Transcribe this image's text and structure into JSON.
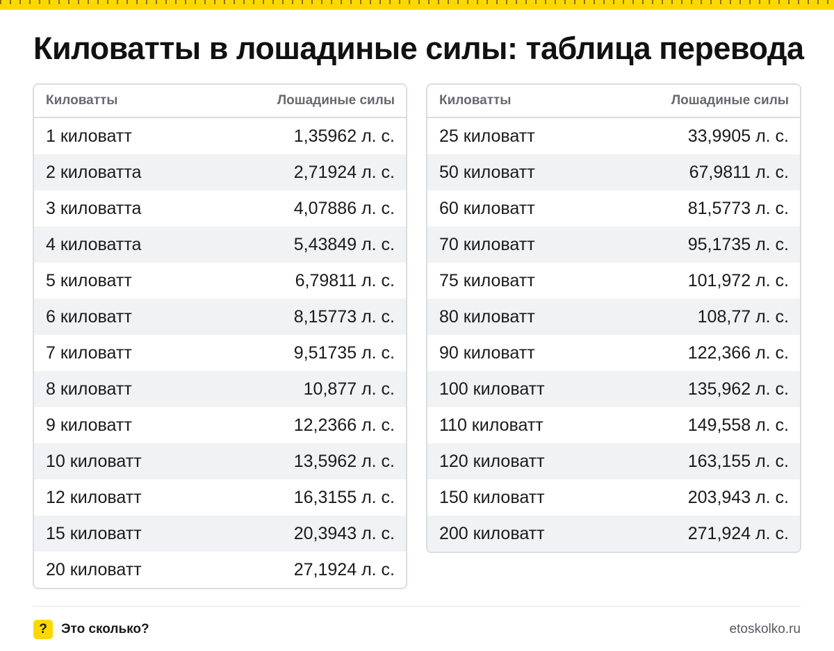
{
  "title": "Киловатты в лошадиные силы: таблица перевода",
  "colors": {
    "accent": "#fcd800",
    "border": "#d9dde2",
    "stripe": "#f1f2f4",
    "header_text": "#666a70"
  },
  "table_left": {
    "headers": {
      "kw": "Киловатты",
      "hp": "Лошадиные силы"
    },
    "rows": [
      {
        "kw": "1 киловатт",
        "hp": "1,35962 л. с."
      },
      {
        "kw": "2 киловатта",
        "hp": "2,71924 л. с."
      },
      {
        "kw": "3 киловатта",
        "hp": "4,07886 л. с."
      },
      {
        "kw": "4 киловатта",
        "hp": "5,43849 л. с."
      },
      {
        "kw": "5 киловатт",
        "hp": "6,79811 л. с."
      },
      {
        "kw": "6 киловатт",
        "hp": "8,15773 л. с."
      },
      {
        "kw": "7 киловатт",
        "hp": "9,51735 л. с."
      },
      {
        "kw": "8 киловатт",
        "hp": "10,877 л. с."
      },
      {
        "kw": "9 киловатт",
        "hp": "12,2366 л. с."
      },
      {
        "kw": "10 киловатт",
        "hp": "13,5962 л. с."
      },
      {
        "kw": "12 киловатт",
        "hp": "16,3155 л. с."
      },
      {
        "kw": "15 киловатт",
        "hp": "20,3943 л. с."
      },
      {
        "kw": "20 киловатт",
        "hp": "27,1924 л. с."
      }
    ]
  },
  "table_right": {
    "headers": {
      "kw": "Киловатты",
      "hp": "Лошадиные силы"
    },
    "rows": [
      {
        "kw": "25 киловатт",
        "hp": "33,9905 л. с."
      },
      {
        "kw": "50 киловатт",
        "hp": "67,9811 л. с."
      },
      {
        "kw": "60 киловатт",
        "hp": "81,5773 л. с."
      },
      {
        "kw": "70 киловатт",
        "hp": "95,1735 л. с."
      },
      {
        "kw": "75 киловатт",
        "hp": "101,972 л. с."
      },
      {
        "kw": "80 киловатт",
        "hp": "108,77 л. с."
      },
      {
        "kw": "90 киловатт",
        "hp": "122,366 л. с."
      },
      {
        "kw": "100 киловатт",
        "hp": "135,962 л. с."
      },
      {
        "kw": "110 киловатт",
        "hp": "149,558 л. с."
      },
      {
        "kw": "120 киловатт",
        "hp": "163,155 л. с."
      },
      {
        "kw": "150 киловатт",
        "hp": "203,943 л. с."
      },
      {
        "kw": "200 киловатт",
        "hp": "271,924 л. с."
      }
    ]
  },
  "footer": {
    "brand_icon": "?",
    "brand_name": "Это сколько?",
    "site": "etoskolko.ru"
  }
}
